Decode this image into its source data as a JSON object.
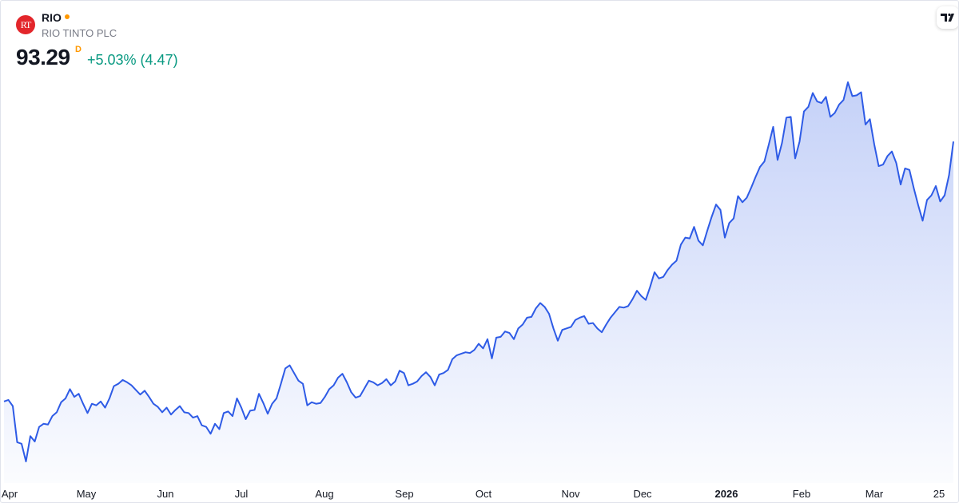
{
  "header": {
    "logo": "RT",
    "symbol": "RIO",
    "name": "RIO TINTO PLC",
    "price": "93.29",
    "currency_flag": "D",
    "change": "+5.03% (4.47)"
  },
  "chart_data": {
    "type": "area",
    "color": "#2e5be6",
    "x_labels": [
      "Apr",
      "May",
      "Jun",
      "Jul",
      "Aug",
      "Sep",
      "Oct",
      "Nov",
      "Dec",
      "2026",
      "Feb",
      "Mar",
      "25"
    ],
    "values": [
      59.5,
      59.7,
      58.9,
      54.2,
      54.0,
      51.7,
      55.0,
      54.3,
      56.2,
      56.6,
      56.5,
      57.6,
      58.1,
      59.4,
      59.9,
      61.1,
      60.1,
      60.5,
      59.2,
      58.0,
      59.2,
      59.0,
      59.5,
      58.7,
      59.9,
      61.5,
      61.8,
      62.3,
      62.0,
      61.6,
      61.0,
      60.4,
      60.9,
      60.1,
      59.2,
      58.8,
      58.1,
      58.7,
      57.8,
      58.4,
      58.9,
      58.1,
      58.0,
      57.4,
      57.6,
      56.4,
      56.2,
      55.3,
      56.6,
      55.9,
      58.0,
      58.2,
      57.6,
      59.9,
      58.7,
      57.2,
      58.3,
      58.4,
      60.5,
      59.3,
      57.9,
      59.2,
      59.9,
      61.8,
      63.8,
      64.2,
      63.2,
      62.2,
      61.8,
      59.0,
      59.4,
      59.2,
      59.3,
      60.1,
      61.1,
      61.6,
      62.6,
      63.1,
      62.0,
      60.7,
      60.0,
      60.2,
      61.2,
      62.2,
      62.0,
      61.6,
      61.9,
      62.4,
      61.6,
      62.1,
      63.5,
      63.2,
      61.6,
      61.8,
      62.1,
      62.8,
      63.3,
      62.7,
      61.6,
      63.0,
      63.2,
      63.6,
      65.0,
      65.5,
      65.7,
      65.9,
      65.8,
      66.2,
      67.0,
      66.4,
      67.6,
      65.1,
      67.8,
      67.9,
      68.6,
      68.4,
      67.6,
      69.0,
      69.5,
      70.4,
      70.5,
      71.6,
      72.3,
      71.8,
      70.9,
      69.0,
      67.4,
      68.8,
      69.0,
      69.2,
      70.1,
      70.4,
      70.6,
      69.6,
      69.7,
      69.0,
      68.5,
      69.5,
      70.4,
      71.1,
      71.8,
      71.7,
      71.9,
      72.8,
      73.9,
      73.2,
      72.7,
      74.4,
      76.3,
      75.5,
      75.7,
      76.6,
      77.3,
      77.8,
      79.9,
      80.8,
      80.7,
      82.2,
      80.4,
      79.8,
      81.7,
      83.5,
      85.1,
      84.4,
      80.8,
      82.7,
      83.3,
      86.2,
      85.4,
      86.0,
      87.3,
      88.7,
      90.0,
      90.7,
      92.9,
      95.2,
      90.9,
      93.1,
      96.4,
      96.5,
      91.1,
      93.3,
      97.2,
      97.8,
      99.6,
      98.5,
      98.3,
      99.1,
      96.5,
      97.0,
      98.1,
      98.7,
      101.0,
      99.2,
      99.3,
      99.7,
      95.5,
      96.2,
      92.9,
      90.1,
      90.3,
      91.4,
      92.0,
      90.5,
      87.7,
      89.8,
      89.6,
      87.2,
      85.0,
      83.0,
      85.7,
      86.3,
      87.5,
      85.5,
      86.3,
      88.9,
      93.29
    ]
  }
}
